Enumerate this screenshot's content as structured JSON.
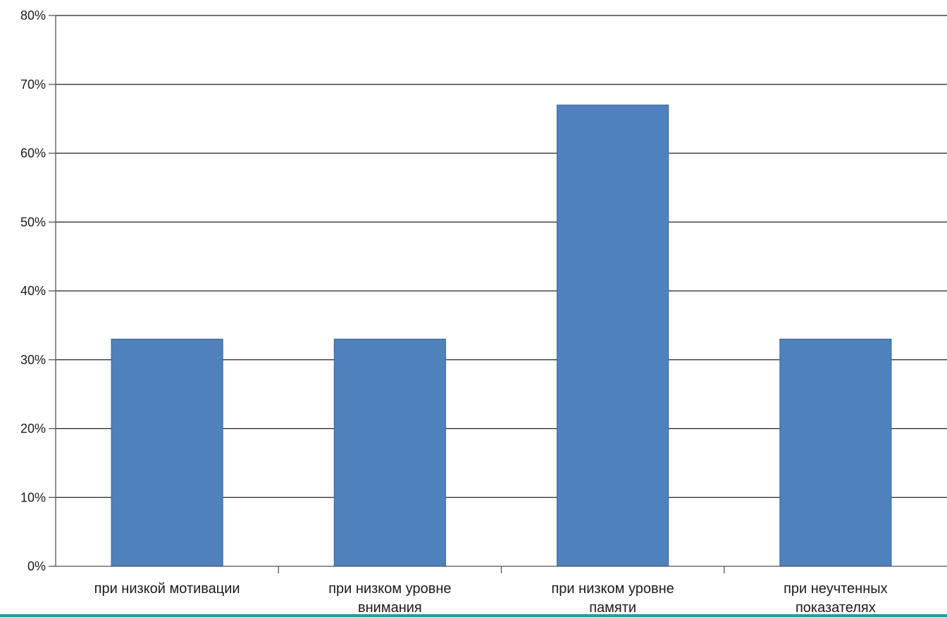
{
  "chart_data": {
    "type": "bar",
    "title": "",
    "xlabel": "",
    "ylabel": "",
    "categories": [
      [
        "при низкой мотивации"
      ],
      [
        "при низком уровне",
        "внимания"
      ],
      [
        "при низком уровне",
        "памяти"
      ],
      [
        "при неучтенных",
        "показателях"
      ]
    ],
    "values": [
      33,
      33,
      67,
      33
    ],
    "ylim": [
      0,
      80
    ],
    "yticks": [
      0,
      10,
      20,
      30,
      40,
      50,
      60,
      70,
      80
    ],
    "ytick_labels": [
      "0%",
      "10%",
      "20%",
      "30%",
      "40%",
      "50%",
      "60%",
      "70%",
      "80%"
    ],
    "grid": true,
    "legend": "none",
    "colors": {
      "bar": "#4f81bd",
      "bar_edge": "#3a6496",
      "grid": "#1f1f1f",
      "axis": "#555555",
      "text": "#1a1a1a",
      "accent_strip": "#1aa39a"
    }
  }
}
